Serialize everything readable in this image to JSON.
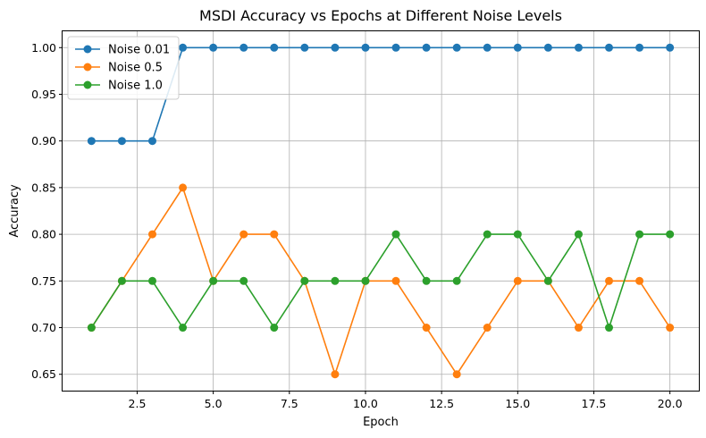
{
  "chart_data": {
    "type": "line",
    "title": "MSDI Accuracy vs Epochs at Different Noise Levels",
    "xlabel": "Epoch",
    "ylabel": "Accuracy",
    "xlim": [
      0.05,
      20.95
    ],
    "ylim": [
      0.6325,
      1.0175
    ],
    "xticks": [
      2.5,
      5.0,
      7.5,
      10.0,
      12.5,
      15.0,
      17.5,
      20.0
    ],
    "xtick_labels": [
      "2.5",
      "5.0",
      "7.5",
      "10.0",
      "12.5",
      "15.0",
      "17.5",
      "20.0"
    ],
    "yticks": [
      0.65,
      0.7,
      0.75,
      0.8,
      0.85,
      0.9,
      0.95,
      1.0
    ],
    "ytick_labels": [
      "0.65",
      "0.70",
      "0.75",
      "0.80",
      "0.85",
      "0.90",
      "0.95",
      "1.00"
    ],
    "grid": true,
    "legend_position": "top-left",
    "markers": "circle",
    "x": [
      1,
      2,
      3,
      4,
      5,
      6,
      7,
      8,
      9,
      10,
      11,
      12,
      13,
      14,
      15,
      16,
      17,
      18,
      19,
      20
    ],
    "series": [
      {
        "name": "Noise 0.01",
        "color": "#1f77b4",
        "values": [
          0.9,
          0.9,
          0.9,
          1.0,
          1.0,
          1.0,
          1.0,
          1.0,
          1.0,
          1.0,
          1.0,
          1.0,
          1.0,
          1.0,
          1.0,
          1.0,
          1.0,
          1.0,
          1.0,
          1.0
        ]
      },
      {
        "name": "Noise 0.5",
        "color": "#ff7f0e",
        "values": [
          0.7,
          0.75,
          0.8,
          0.85,
          0.75,
          0.8,
          0.8,
          0.75,
          0.65,
          0.75,
          0.75,
          0.7,
          0.65,
          0.7,
          0.75,
          0.75,
          0.7,
          0.75,
          0.75,
          0.7
        ]
      },
      {
        "name": "Noise 1.0",
        "color": "#2ca02c",
        "values": [
          0.7,
          0.75,
          0.75,
          0.7,
          0.75,
          0.75,
          0.7,
          0.75,
          0.75,
          0.75,
          0.8,
          0.75,
          0.75,
          0.8,
          0.8,
          0.75,
          0.8,
          0.7,
          0.8,
          0.8
        ]
      }
    ]
  }
}
